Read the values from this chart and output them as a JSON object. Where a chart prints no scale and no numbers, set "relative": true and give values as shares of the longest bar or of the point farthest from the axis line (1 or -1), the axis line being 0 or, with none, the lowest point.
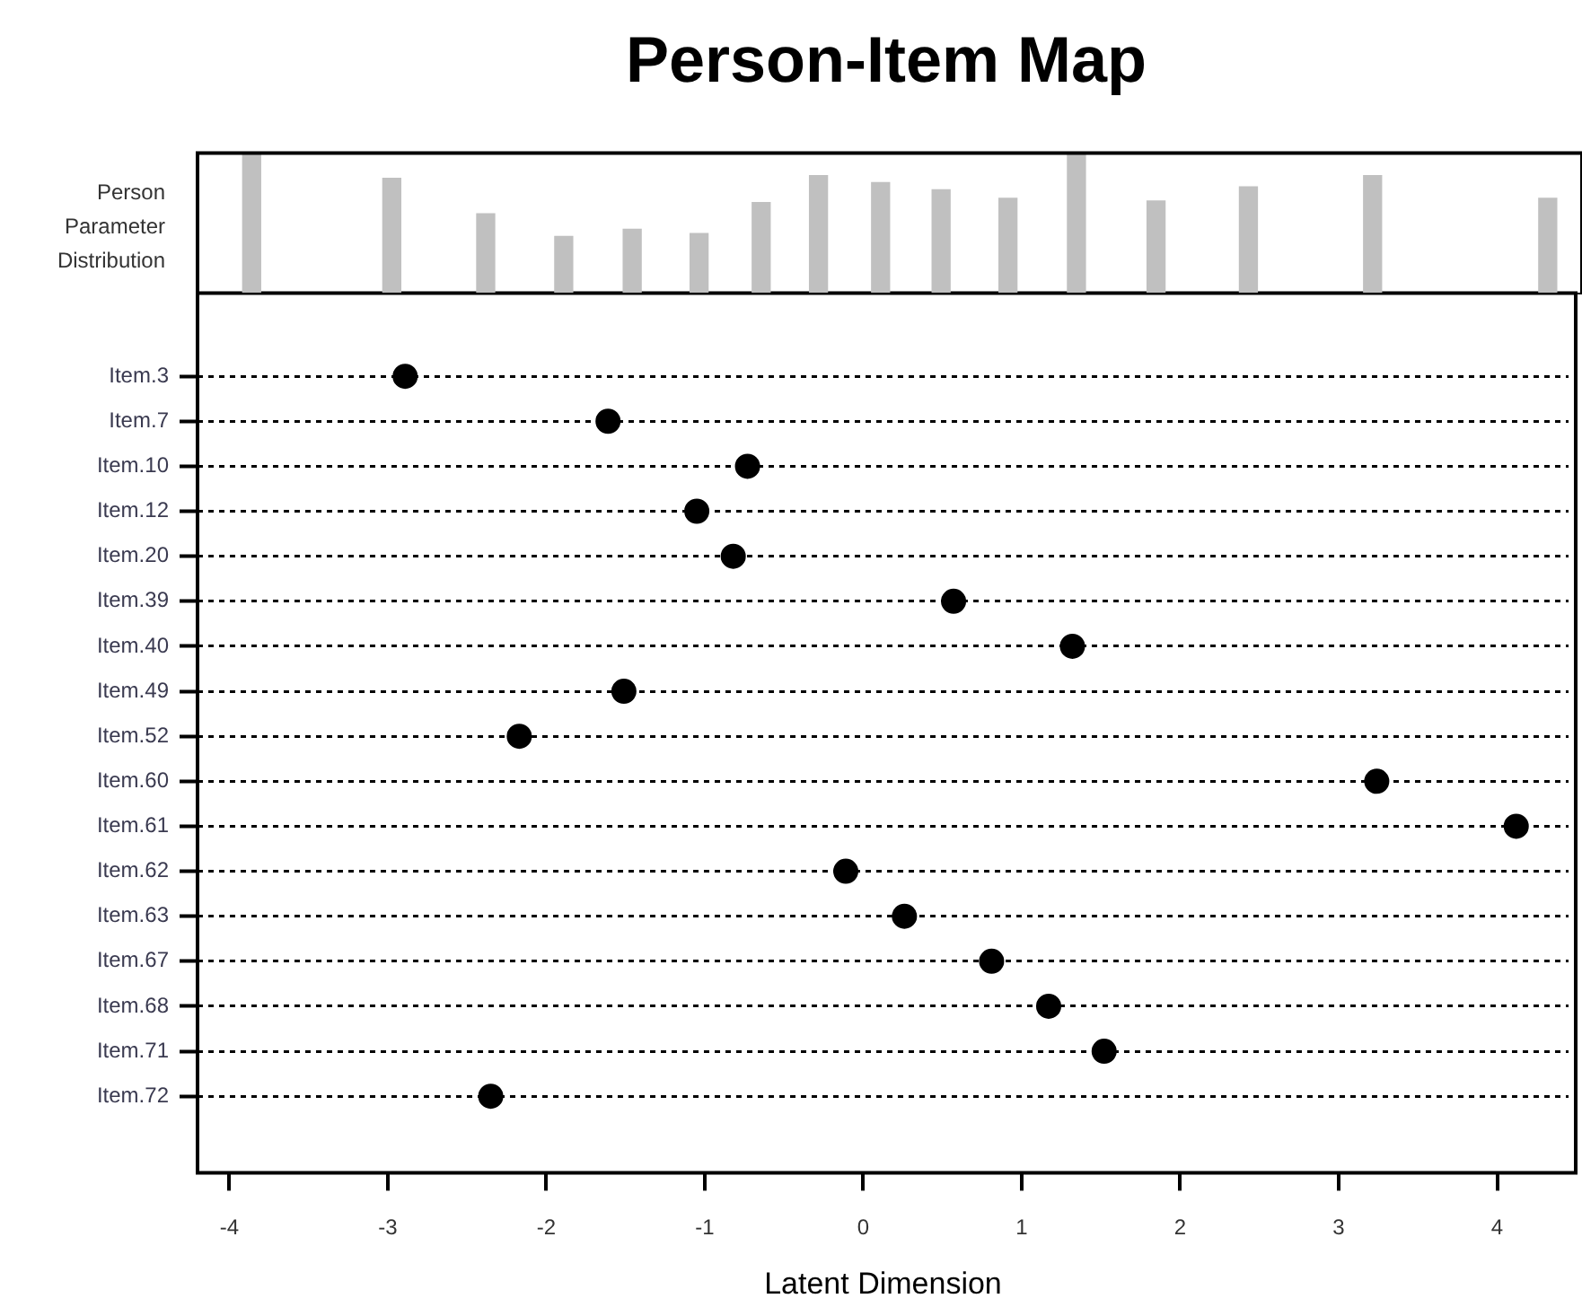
{
  "chart_data": [
    {
      "type": "bar",
      "title": "Person-Item Map",
      "ylabel": "Person Parameter Distribution",
      "x": [
        -3.86,
        -2.98,
        -2.39,
        -1.9,
        -1.47,
        -1.05,
        -0.66,
        -0.3,
        0.09,
        0.47,
        0.89,
        1.32,
        1.82,
        2.4,
        3.18,
        4.28
      ],
      "values": [
        1,
        0.82,
        0.57,
        0.41,
        0.46,
        0.43,
        0.65,
        0.84,
        0.79,
        0.74,
        0.68,
        1,
        0.66,
        0.76,
        0.84,
        0.68
      ],
      "color": "#c0c0c0",
      "relative": true,
      "xlim": [
        -4.2,
        4.45
      ],
      "tick_labels": false
    },
    {
      "type": "scatter",
      "orientation": "horizontal",
      "xlabel": "Latent Dimension",
      "categories": [
        "Item.3",
        "Item.7",
        "Item.10",
        "Item.12",
        "Item.20",
        "Item.39",
        "Item.40",
        "Item.49",
        "Item.52",
        "Item.60",
        "Item.61",
        "Item.62",
        "Item.63",
        "Item.67",
        "Item.68",
        "Item.71",
        "Item.72"
      ],
      "values": [
        -2.89,
        -1.61,
        -0.73,
        -1.05,
        -0.82,
        0.57,
        1.32,
        -1.51,
        -2.17,
        3.24,
        4.12,
        -0.11,
        0.26,
        0.81,
        1.17,
        1.52,
        -2.35
      ],
      "color": "#000000",
      "marker": "circle",
      "grid": "y",
      "xlim": [
        -4.2,
        4.45
      ],
      "xticks": [
        -4,
        -3,
        -2,
        -1,
        0,
        1,
        2,
        3,
        4
      ]
    }
  ]
}
